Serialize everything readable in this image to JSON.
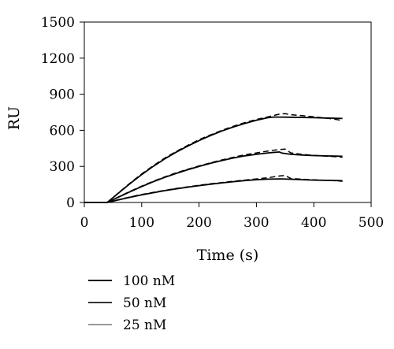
{
  "chart_data": {
    "type": "line",
    "title": "",
    "xlabel": "Time (s)",
    "ylabel": "RU",
    "xlim": [
      0,
      500
    ],
    "ylim": [
      0,
      1500
    ],
    "xticks": [
      0,
      100,
      200,
      300,
      400,
      500
    ],
    "yticks": [
      0,
      300,
      600,
      900,
      1200,
      1500
    ],
    "grid": false,
    "legend_position": "bottom-left",
    "series": [
      {
        "name": "100 nM",
        "color": "#000000",
        "fit_x": [
          0,
          40,
          60,
          80,
          100,
          120,
          140,
          160,
          180,
          200,
          220,
          240,
          260,
          280,
          300,
          320,
          330,
          340,
          360,
          380,
          400,
          420,
          440,
          450
        ],
        "fit_y": [
          0,
          0,
          80,
          158,
          232,
          300,
          362,
          418,
          468,
          515,
          557,
          595,
          628,
          657,
          684,
          705,
          710,
          710,
          709,
          707,
          705,
          702,
          700,
          698
        ],
        "measured_x": [
          40,
          60,
          80,
          100,
          120,
          140,
          160,
          180,
          200,
          220,
          240,
          260,
          280,
          300,
          320,
          340,
          350,
          360,
          380,
          400,
          420,
          440,
          450
        ],
        "measured_y": [
          0,
          82,
          162,
          238,
          305,
          368,
          424,
          474,
          522,
          562,
          600,
          634,
          664,
          690,
          712,
          734,
          738,
          730,
          722,
          712,
          702,
          690,
          680
        ]
      },
      {
        "name": "50 nM",
        "color": "#333333",
        "fit_x": [
          0,
          40,
          60,
          80,
          100,
          120,
          140,
          160,
          180,
          200,
          220,
          240,
          260,
          280,
          300,
          320,
          340,
          345,
          360,
          380,
          400,
          420,
          440,
          450
        ],
        "fit_y": [
          0,
          0,
          45,
          90,
          132,
          172,
          208,
          242,
          272,
          300,
          326,
          349,
          370,
          388,
          400,
          412,
          420,
          410,
          400,
          394,
          390,
          387,
          385,
          384
        ],
        "measured_x": [
          40,
          60,
          80,
          100,
          120,
          140,
          160,
          180,
          200,
          220,
          240,
          260,
          280,
          300,
          320,
          340,
          350,
          360,
          380,
          400,
          420,
          440,
          450
        ],
        "measured_y": [
          0,
          47,
          93,
          136,
          176,
          212,
          246,
          276,
          304,
          330,
          354,
          376,
          396,
          412,
          428,
          440,
          444,
          412,
          400,
          392,
          386,
          380,
          376
        ]
      },
      {
        "name": "25 nM",
        "color": "#999999",
        "fit_x": [
          0,
          40,
          60,
          80,
          100,
          120,
          140,
          160,
          180,
          200,
          220,
          240,
          260,
          280,
          300,
          320,
          340,
          345,
          360,
          380,
          400,
          420,
          440,
          450
        ],
        "fit_y": [
          0,
          0,
          22,
          43,
          63,
          81,
          98,
          113,
          127,
          140,
          152,
          163,
          173,
          182,
          189,
          194,
          196,
          196,
          193,
          189,
          186,
          184,
          182,
          181
        ],
        "measured_x": [
          40,
          60,
          80,
          100,
          120,
          140,
          160,
          180,
          200,
          220,
          240,
          260,
          280,
          300,
          320,
          340,
          350,
          360,
          380,
          400,
          420,
          440,
          450
        ],
        "measured_y": [
          0,
          24,
          46,
          66,
          84,
          101,
          116,
          130,
          143,
          155,
          166,
          176,
          186,
          196,
          206,
          220,
          224,
          200,
          193,
          188,
          184,
          180,
          176
        ]
      }
    ]
  }
}
